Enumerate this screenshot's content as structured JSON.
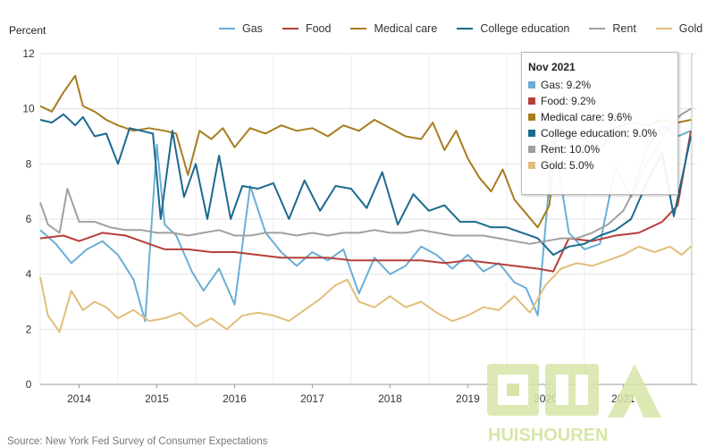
{
  "chart_data": {
    "type": "line",
    "ylabel": "Percent",
    "yticks": [
      0,
      2,
      4,
      6,
      8,
      10,
      12
    ],
    "ylim": [
      0,
      12
    ],
    "xlim": [
      2013.5,
      2021.95
    ],
    "xticks": [
      "2014",
      "2015",
      "2016",
      "2017",
      "2018",
      "2019",
      "2020",
      "2021"
    ],
    "grid": true,
    "legend_position": "top",
    "source": "Source: New York Fed Survey of Consumer Expectations",
    "tooltip": {
      "title": "Nov 2021",
      "rows": [
        {
          "label": "Gas: 9.2%",
          "color": "#6aaed6"
        },
        {
          "label": "Food: 9.2%",
          "color": "#b5403a"
        },
        {
          "label": "Medical care: 9.6%",
          "color": "#a87d1f"
        },
        {
          "label": "College education: 9.0%",
          "color": "#1a6a8f"
        },
        {
          "label": "Rent: 10.0%",
          "color": "#a0a0a0"
        },
        {
          "label": "Gold: 5.0%",
          "color": "#e0bf7a"
        }
      ]
    },
    "series": [
      {
        "name": "Gas",
        "color": "#6aaed6",
        "x": [
          2013.5,
          2013.7,
          2013.9,
          2014.1,
          2014.3,
          2014.5,
          2014.7,
          2014.85,
          2015.0,
          2015.1,
          2015.25,
          2015.45,
          2015.6,
          2015.8,
          2016.0,
          2016.2,
          2016.4,
          2016.6,
          2016.8,
          2017.0,
          2017.2,
          2017.4,
          2017.6,
          2017.8,
          2018.0,
          2018.2,
          2018.4,
          2018.6,
          2018.8,
          2019.0,
          2019.2,
          2019.4,
          2019.6,
          2019.75,
          2019.9,
          2020.1,
          2020.3,
          2020.5,
          2020.7,
          2020.9,
          2021.1,
          2021.3,
          2021.5,
          2021.7,
          2021.87
        ],
        "y": [
          5.6,
          5.1,
          4.4,
          4.9,
          5.2,
          4.7,
          3.8,
          2.3,
          8.7,
          5.8,
          5.4,
          4.1,
          3.4,
          4.2,
          2.9,
          7.2,
          5.5,
          4.8,
          4.3,
          4.8,
          4.5,
          4.9,
          3.3,
          4.6,
          4.0,
          4.3,
          5.0,
          4.7,
          4.2,
          4.7,
          4.1,
          4.4,
          3.7,
          3.5,
          2.5,
          9.0,
          5.5,
          4.9,
          5.1,
          7.9,
          6.8,
          8.5,
          9.4,
          9.0,
          9.2
        ]
      },
      {
        "name": "Food",
        "color": "#b5403a",
        "x": [
          2013.5,
          2013.8,
          2014.0,
          2014.3,
          2014.6,
          2014.9,
          2015.1,
          2015.4,
          2015.7,
          2016.0,
          2016.3,
          2016.6,
          2016.9,
          2017.2,
          2017.5,
          2017.8,
          2018.1,
          2018.4,
          2018.7,
          2019.0,
          2019.3,
          2019.6,
          2019.9,
          2020.1,
          2020.3,
          2020.6,
          2020.9,
          2021.2,
          2021.5,
          2021.7,
          2021.87
        ],
        "y": [
          5.3,
          5.4,
          5.2,
          5.5,
          5.4,
          5.1,
          4.9,
          4.9,
          4.8,
          4.8,
          4.7,
          4.6,
          4.6,
          4.6,
          4.5,
          4.5,
          4.5,
          4.5,
          4.4,
          4.5,
          4.4,
          4.3,
          4.2,
          4.1,
          5.3,
          5.2,
          5.4,
          5.5,
          5.9,
          6.5,
          9.2
        ]
      },
      {
        "name": "Medical care",
        "color": "#a87d1f",
        "x": [
          2013.5,
          2013.65,
          2013.8,
          2013.95,
          2014.05,
          2014.2,
          2014.35,
          2014.5,
          2014.7,
          2014.9,
          2015.1,
          2015.25,
          2015.4,
          2015.55,
          2015.7,
          2015.85,
          2016.0,
          2016.2,
          2016.4,
          2016.6,
          2016.8,
          2017.0,
          2017.2,
          2017.4,
          2017.6,
          2017.8,
          2018.0,
          2018.2,
          2018.4,
          2018.55,
          2018.7,
          2018.85,
          2019.0,
          2019.15,
          2019.3,
          2019.45,
          2019.6,
          2019.75,
          2019.9,
          2020.05,
          2020.15,
          2020.3,
          2020.5,
          2020.7,
          2020.9,
          2021.1,
          2021.3,
          2021.5,
          2021.7,
          2021.87
        ],
        "y": [
          10.1,
          9.9,
          10.6,
          11.2,
          10.1,
          9.9,
          9.6,
          9.4,
          9.2,
          9.3,
          9.2,
          9.1,
          7.6,
          9.2,
          8.9,
          9.3,
          8.6,
          9.3,
          9.1,
          9.4,
          9.2,
          9.3,
          9.0,
          9.4,
          9.2,
          9.6,
          9.3,
          9.0,
          8.9,
          9.5,
          8.5,
          9.2,
          8.2,
          7.5,
          7.0,
          7.8,
          6.7,
          6.2,
          5.7,
          6.5,
          9.3,
          9.0,
          8.9,
          8.5,
          9.3,
          9.5,
          9.4,
          9.6,
          9.5,
          9.6
        ]
      },
      {
        "name": "College education",
        "color": "#1a6a8f",
        "x": [
          2013.5,
          2013.65,
          2013.8,
          2013.95,
          2014.05,
          2014.2,
          2014.35,
          2014.5,
          2014.65,
          2014.8,
          2014.95,
          2015.05,
          2015.2,
          2015.35,
          2015.5,
          2015.65,
          2015.8,
          2015.95,
          2016.1,
          2016.3,
          2016.5,
          2016.7,
          2016.9,
          2017.1,
          2017.3,
          2017.5,
          2017.7,
          2017.9,
          2018.1,
          2018.3,
          2018.5,
          2018.7,
          2018.9,
          2019.1,
          2019.3,
          2019.5,
          2019.7,
          2019.9,
          2020.1,
          2020.3,
          2020.5,
          2020.7,
          2020.9,
          2021.1,
          2021.3,
          2021.5,
          2021.65,
          2021.87
        ],
        "y": [
          9.6,
          9.5,
          9.8,
          9.4,
          9.7,
          9.0,
          9.1,
          8.0,
          9.3,
          9.2,
          9.1,
          6.0,
          9.2,
          6.8,
          8.0,
          6.0,
          8.3,
          6.0,
          7.2,
          7.1,
          7.3,
          6.0,
          7.4,
          6.3,
          7.2,
          7.1,
          6.4,
          7.7,
          5.8,
          6.9,
          6.3,
          6.5,
          5.9,
          5.9,
          5.7,
          5.7,
          5.5,
          5.3,
          4.7,
          5.0,
          5.1,
          5.4,
          5.6,
          6.0,
          7.3,
          8.4,
          6.1,
          9.0
        ]
      },
      {
        "name": "Rent",
        "color": "#a0a0a0",
        "x": [
          2013.5,
          2013.6,
          2013.75,
          2013.85,
          2014.0,
          2014.2,
          2014.4,
          2014.6,
          2014.8,
          2015.0,
          2015.2,
          2015.4,
          2015.6,
          2015.8,
          2016.0,
          2016.2,
          2016.4,
          2016.6,
          2016.8,
          2017.0,
          2017.2,
          2017.4,
          2017.6,
          2017.8,
          2018.0,
          2018.2,
          2018.4,
          2018.6,
          2018.8,
          2019.0,
          2019.2,
          2019.4,
          2019.6,
          2019.8,
          2020.0,
          2020.2,
          2020.4,
          2020.6,
          2020.8,
          2021.0,
          2021.2,
          2021.4,
          2021.6,
          2021.75,
          2021.87
        ],
        "y": [
          6.6,
          5.8,
          5.5,
          7.1,
          5.9,
          5.9,
          5.7,
          5.6,
          5.6,
          5.5,
          5.5,
          5.4,
          5.5,
          5.6,
          5.4,
          5.4,
          5.5,
          5.5,
          5.4,
          5.5,
          5.4,
          5.5,
          5.5,
          5.6,
          5.5,
          5.5,
          5.6,
          5.5,
          5.4,
          5.4,
          5.4,
          5.3,
          5.2,
          5.1,
          5.2,
          5.3,
          5.3,
          5.5,
          5.8,
          6.3,
          7.4,
          8.5,
          9.4,
          9.8,
          10.0
        ]
      },
      {
        "name": "Gold",
        "color": "#e0bf7a",
        "x": [
          2013.5,
          2013.6,
          2013.75,
          2013.9,
          2014.05,
          2014.2,
          2014.35,
          2014.5,
          2014.7,
          2014.9,
          2015.1,
          2015.3,
          2015.5,
          2015.7,
          2015.9,
          2016.1,
          2016.3,
          2016.5,
          2016.7,
          2016.9,
          2017.1,
          2017.3,
          2017.45,
          2017.6,
          2017.8,
          2018.0,
          2018.2,
          2018.4,
          2018.6,
          2018.8,
          2019.0,
          2019.2,
          2019.4,
          2019.6,
          2019.8,
          2020.0,
          2020.2,
          2020.4,
          2020.6,
          2020.8,
          2021.0,
          2021.2,
          2021.4,
          2021.6,
          2021.75,
          2021.87
        ],
        "y": [
          3.9,
          2.5,
          1.9,
          3.4,
          2.7,
          3.0,
          2.8,
          2.4,
          2.7,
          2.3,
          2.4,
          2.6,
          2.1,
          2.4,
          2.0,
          2.5,
          2.6,
          2.5,
          2.3,
          2.7,
          3.1,
          3.6,
          3.8,
          3.0,
          2.8,
          3.2,
          2.8,
          3.0,
          2.6,
          2.3,
          2.5,
          2.8,
          2.7,
          3.2,
          2.6,
          3.6,
          4.2,
          4.4,
          4.3,
          4.5,
          4.7,
          5.0,
          4.8,
          5.0,
          4.7,
          5.0
        ]
      }
    ]
  }
}
